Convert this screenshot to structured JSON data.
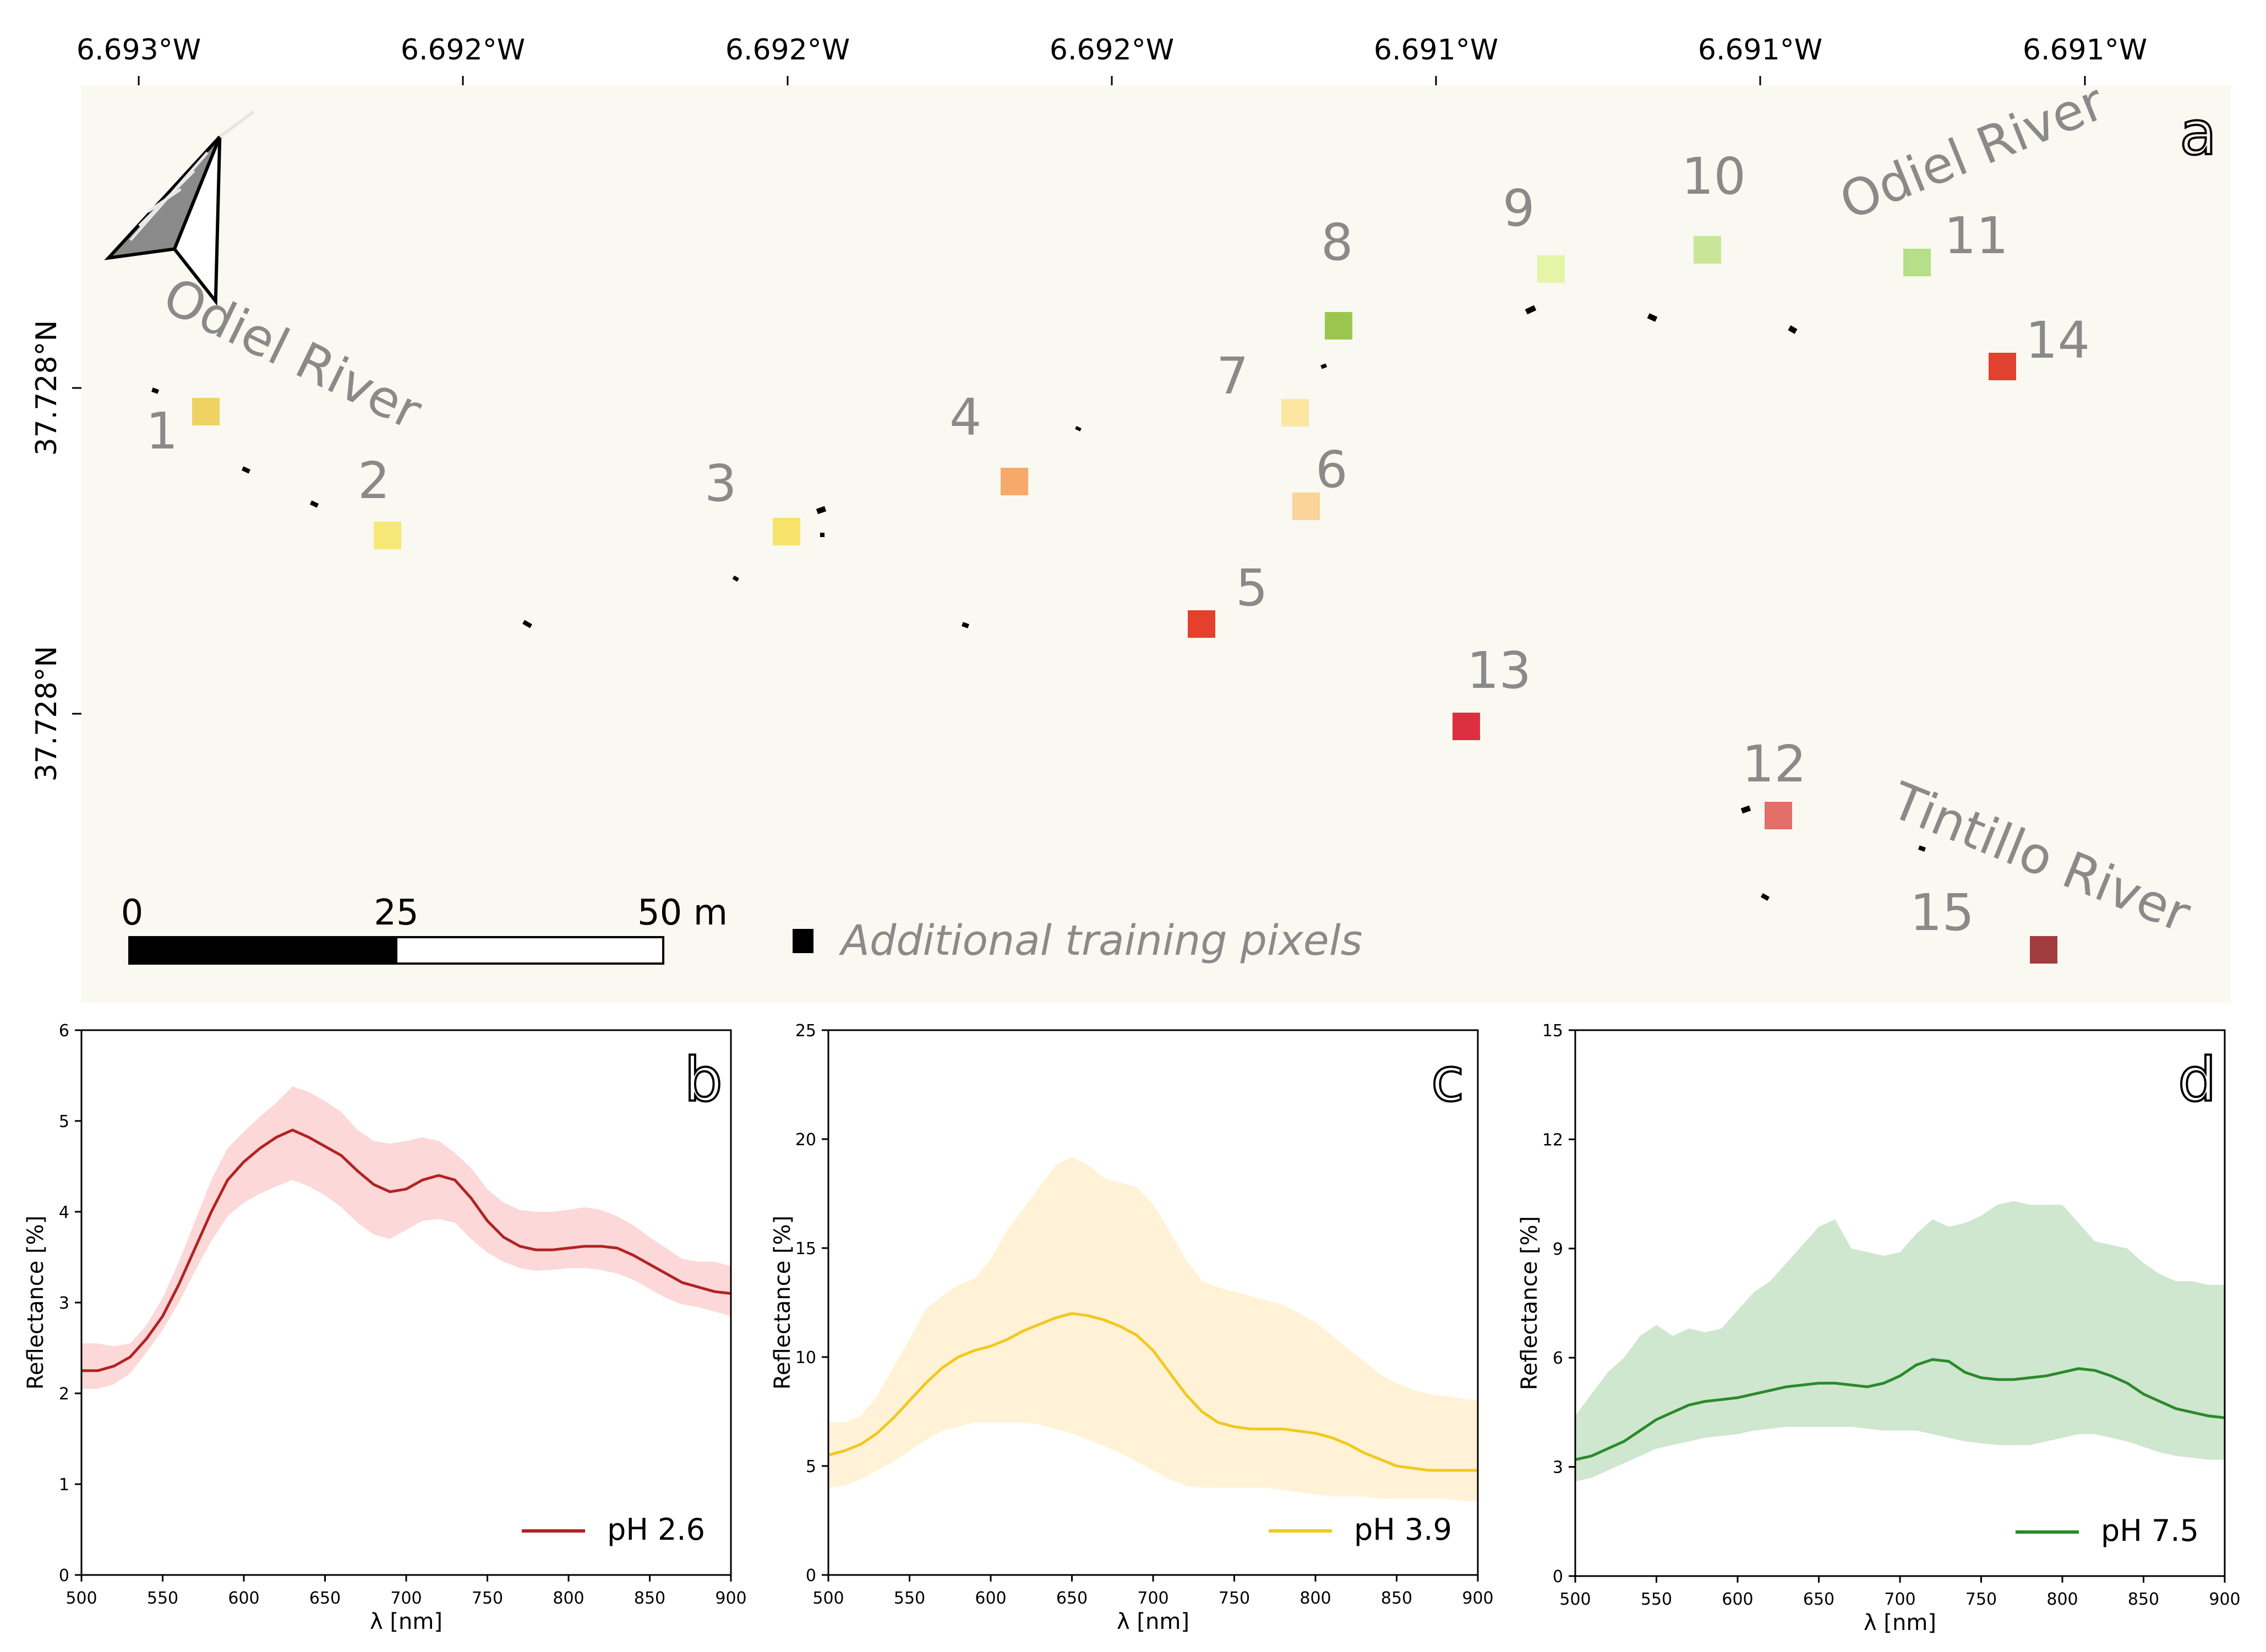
{
  "map": {
    "panel_label": "a",
    "x_ticks": [
      "6.693°W",
      "6.692°W",
      "6.692°W",
      "6.692°W",
      "6.691°W",
      "6.691°W",
      "6.691°W"
    ],
    "y_ticks": [
      "37.728°N",
      "37.728°N"
    ],
    "river_labels": [
      "Odiel River",
      "Odiel River",
      "Tintillo River"
    ],
    "scale_labels": [
      "0",
      "25",
      "50 m"
    ],
    "legend_text": "Additional training pixels",
    "colors": {
      "background": "#f9f8f1",
      "text_gray": "#8a8a8a",
      "training_pixel": "#000000"
    },
    "sampling_points": [
      {
        "id": "1",
        "color": "#f0d264"
      },
      {
        "id": "2",
        "color": "#f8e87a"
      },
      {
        "id": "3",
        "color": "#f6e36c"
      },
      {
        "id": "4",
        "color": "#f7a96a"
      },
      {
        "id": "5",
        "color": "#e5402b"
      },
      {
        "id": "6",
        "color": "#fcd39a"
      },
      {
        "id": "7",
        "color": "#fce6a2"
      },
      {
        "id": "8",
        "color": "#9bc750"
      },
      {
        "id": "9",
        "color": "#e6f4a8"
      },
      {
        "id": "10",
        "color": "#c9e698"
      },
      {
        "id": "11",
        "color": "#b5df88"
      },
      {
        "id": "12",
        "color": "#e36e6a"
      },
      {
        "id": "13",
        "color": "#dc2f3f"
      },
      {
        "id": "14",
        "color": "#e1412f"
      },
      {
        "id": "15",
        "color": "#a23c3f"
      }
    ]
  },
  "chart_data": [
    {
      "type": "line",
      "panel_label": "b",
      "xlabel": "λ [nm]",
      "ylabel": "Reflectance [%]",
      "xlim": [
        500,
        900
      ],
      "ylim": [
        0,
        6
      ],
      "x_ticks": [
        500,
        550,
        600,
        650,
        700,
        750,
        800,
        850,
        900
      ],
      "y_ticks": [
        0,
        1,
        2,
        3,
        4,
        5,
        6
      ],
      "legend": "pH 2.6",
      "line_color": "#b22222",
      "band_color": "#fcd8d8",
      "x": [
        500,
        510,
        520,
        530,
        540,
        550,
        560,
        570,
        580,
        590,
        600,
        610,
        620,
        630,
        640,
        650,
        660,
        670,
        680,
        690,
        700,
        710,
        720,
        730,
        740,
        750,
        760,
        770,
        780,
        790,
        800,
        810,
        820,
        830,
        840,
        850,
        860,
        870,
        880,
        890,
        900
      ],
      "mean": [
        2.25,
        2.25,
        2.3,
        2.4,
        2.6,
        2.85,
        3.2,
        3.6,
        4.0,
        4.35,
        4.55,
        4.7,
        4.82,
        4.9,
        4.82,
        4.72,
        4.62,
        4.45,
        4.3,
        4.22,
        4.25,
        4.35,
        4.4,
        4.35,
        4.15,
        3.9,
        3.72,
        3.62,
        3.58,
        3.58,
        3.6,
        3.62,
        3.62,
        3.6,
        3.52,
        3.42,
        3.32,
        3.22,
        3.17,
        3.12,
        3.1
      ],
      "upper": [
        2.55,
        2.55,
        2.52,
        2.55,
        2.75,
        3.05,
        3.45,
        3.9,
        4.35,
        4.7,
        4.88,
        5.05,
        5.2,
        5.38,
        5.32,
        5.22,
        5.1,
        4.9,
        4.78,
        4.75,
        4.78,
        4.82,
        4.78,
        4.65,
        4.48,
        4.25,
        4.1,
        4.02,
        4.0,
        4.0,
        4.02,
        4.05,
        4.02,
        3.95,
        3.85,
        3.72,
        3.6,
        3.48,
        3.45,
        3.45,
        3.4
      ],
      "lower": [
        2.05,
        2.05,
        2.1,
        2.22,
        2.45,
        2.7,
        3.0,
        3.35,
        3.68,
        3.95,
        4.1,
        4.2,
        4.28,
        4.35,
        4.28,
        4.18,
        4.05,
        3.88,
        3.75,
        3.7,
        3.8,
        3.9,
        3.92,
        3.88,
        3.7,
        3.55,
        3.45,
        3.38,
        3.35,
        3.36,
        3.38,
        3.38,
        3.36,
        3.32,
        3.25,
        3.15,
        3.05,
        2.98,
        2.95,
        2.9,
        2.85
      ]
    },
    {
      "type": "line",
      "panel_label": "c",
      "xlabel": "λ [nm]",
      "ylabel": "Reflectance [%]",
      "xlim": [
        500,
        900
      ],
      "ylim": [
        0,
        25
      ],
      "x_ticks": [
        500,
        550,
        600,
        650,
        700,
        750,
        800,
        850,
        900
      ],
      "y_ticks": [
        0,
        5,
        10,
        15,
        20,
        25
      ],
      "legend": "pH 3.9",
      "line_color": "#f2c81e",
      "band_color": "#fff2d6",
      "x": [
        500,
        510,
        520,
        530,
        540,
        550,
        560,
        570,
        580,
        590,
        600,
        610,
        620,
        630,
        640,
        650,
        660,
        670,
        680,
        690,
        700,
        710,
        720,
        730,
        740,
        750,
        760,
        770,
        780,
        790,
        800,
        810,
        820,
        830,
        840,
        850,
        860,
        870,
        880,
        890,
        900
      ],
      "mean": [
        5.5,
        5.7,
        6.0,
        6.5,
        7.2,
        8.0,
        8.8,
        9.5,
        10.0,
        10.3,
        10.5,
        10.8,
        11.2,
        11.5,
        11.8,
        12.0,
        11.9,
        11.7,
        11.4,
        11.0,
        10.3,
        9.3,
        8.3,
        7.5,
        7.0,
        6.8,
        6.7,
        6.7,
        6.7,
        6.6,
        6.5,
        6.3,
        6.0,
        5.6,
        5.3,
        5.0,
        4.9,
        4.8,
        4.8,
        4.8,
        4.8
      ],
      "upper": [
        7.0,
        7.0,
        7.3,
        8.2,
        9.5,
        10.8,
        12.2,
        12.8,
        13.3,
        13.6,
        14.5,
        15.8,
        16.8,
        17.8,
        18.8,
        19.2,
        18.8,
        18.2,
        18.0,
        17.8,
        17.0,
        15.8,
        14.5,
        13.5,
        13.2,
        13.0,
        12.8,
        12.6,
        12.4,
        12.0,
        11.6,
        11.0,
        10.4,
        9.8,
        9.2,
        8.8,
        8.5,
        8.3,
        8.2,
        8.1,
        8.0
      ],
      "lower": [
        4.0,
        4.1,
        4.4,
        4.8,
        5.2,
        5.7,
        6.2,
        6.6,
        6.8,
        7.0,
        7.0,
        7.0,
        7.0,
        6.9,
        6.7,
        6.5,
        6.2,
        5.9,
        5.6,
        5.2,
        4.8,
        4.4,
        4.1,
        4.0,
        4.0,
        4.0,
        4.0,
        4.0,
        3.9,
        3.8,
        3.7,
        3.6,
        3.6,
        3.6,
        3.5,
        3.5,
        3.5,
        3.5,
        3.5,
        3.4,
        3.4
      ]
    },
    {
      "type": "line",
      "panel_label": "d",
      "xlabel": "λ [nm]",
      "ylabel": "Reflectance [%]",
      "xlim": [
        500,
        900
      ],
      "ylim": [
        0,
        15
      ],
      "x_ticks": [
        500,
        550,
        600,
        650,
        700,
        750,
        800,
        850,
        900
      ],
      "y_ticks": [
        0,
        3,
        6,
        9,
        12,
        15
      ],
      "legend": "pH 7.5",
      "line_color": "#2a8a2a",
      "band_color": "#cfe6cf",
      "x": [
        500,
        510,
        520,
        530,
        540,
        550,
        560,
        570,
        580,
        590,
        600,
        610,
        620,
        630,
        640,
        650,
        660,
        670,
        680,
        690,
        700,
        710,
        720,
        730,
        740,
        750,
        760,
        770,
        780,
        790,
        800,
        810,
        820,
        830,
        840,
        850,
        860,
        870,
        880,
        890,
        900
      ],
      "mean": [
        3.2,
        3.3,
        3.5,
        3.7,
        4.0,
        4.3,
        4.5,
        4.7,
        4.8,
        4.85,
        4.9,
        5.0,
        5.1,
        5.2,
        5.25,
        5.3,
        5.3,
        5.25,
        5.2,
        5.3,
        5.5,
        5.8,
        5.95,
        5.9,
        5.6,
        5.45,
        5.4,
        5.4,
        5.45,
        5.5,
        5.6,
        5.7,
        5.65,
        5.5,
        5.3,
        5.0,
        4.8,
        4.6,
        4.5,
        4.4,
        4.35
      ],
      "upper": [
        4.4,
        5.0,
        5.6,
        6.0,
        6.6,
        6.9,
        6.6,
        6.8,
        6.7,
        6.8,
        7.3,
        7.8,
        8.1,
        8.6,
        9.1,
        9.6,
        9.8,
        9.0,
        8.9,
        8.8,
        8.9,
        9.4,
        9.8,
        9.6,
        9.7,
        9.9,
        10.2,
        10.3,
        10.2,
        10.2,
        10.2,
        9.7,
        9.2,
        9.1,
        9.0,
        8.6,
        8.3,
        8.1,
        8.1,
        8.0,
        8.0
      ],
      "lower": [
        2.6,
        2.7,
        2.9,
        3.1,
        3.3,
        3.5,
        3.6,
        3.7,
        3.8,
        3.85,
        3.9,
        4.0,
        4.05,
        4.1,
        4.1,
        4.1,
        4.1,
        4.1,
        4.05,
        4.0,
        4.0,
        4.0,
        3.9,
        3.8,
        3.7,
        3.65,
        3.6,
        3.6,
        3.6,
        3.7,
        3.8,
        3.9,
        3.9,
        3.8,
        3.7,
        3.55,
        3.4,
        3.3,
        3.25,
        3.2,
        3.2
      ]
    }
  ]
}
